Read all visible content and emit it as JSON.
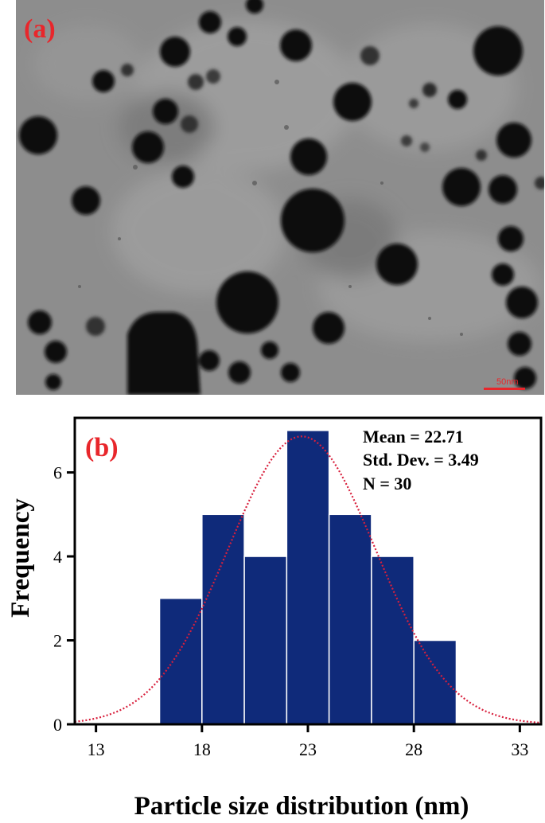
{
  "panel_a": {
    "label": "(a)",
    "scale_bar_label": "50nm"
  },
  "chart_data": {
    "type": "bar",
    "panel_label": "(b)",
    "xlabel": "Particle size distribution (nm)",
    "ylabel": "Frequency",
    "xlim": [
      12,
      34
    ],
    "ylim": [
      0,
      7.3
    ],
    "x_ticks": [
      13,
      18,
      23,
      28,
      33
    ],
    "y_ticks": [
      0,
      2,
      4,
      6
    ],
    "bins": [
      {
        "start": 16,
        "end": 18,
        "value": 3
      },
      {
        "start": 18,
        "end": 20,
        "value": 5
      },
      {
        "start": 20,
        "end": 22,
        "value": 4
      },
      {
        "start": 22,
        "end": 24,
        "value": 7
      },
      {
        "start": 24,
        "end": 26,
        "value": 5
      },
      {
        "start": 26,
        "end": 28,
        "value": 4
      },
      {
        "start": 28,
        "end": 30,
        "value": 2
      }
    ],
    "bar_color": "#0f2a7a",
    "normal_curve": {
      "mean": 22.71,
      "std": 3.49,
      "n": 30,
      "bin_width": 2,
      "color": "#d81f3c"
    },
    "stats_lines": [
      "Mean = 22.71",
      "Std. Dev. = 3.49",
      "N = 30"
    ],
    "grid": false
  }
}
